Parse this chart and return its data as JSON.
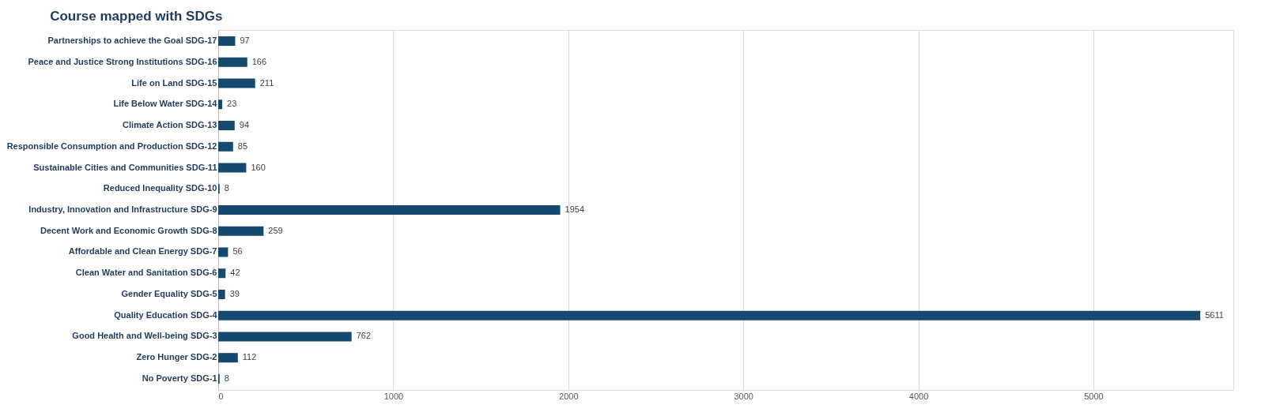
{
  "chart_data": {
    "type": "bar",
    "orientation": "horizontal",
    "title": "Course mapped with SDGs",
    "categories": [
      "Partnerships to achieve the Goal SDG-17",
      "Peace and Justice Strong Institutions SDG-16",
      "Life on Land SDG-15",
      "Life Below Water SDG-14",
      "Climate Action SDG-13",
      "Responsible Consumption and Production SDG-12",
      "Sustainable Cities and Communities SDG-11",
      "Reduced Inequality SDG-10",
      "Industry, Innovation and Infrastructure SDG-9",
      "Decent Work and Economic Growth SDG-8",
      "Affordable and Clean Energy SDG-7",
      "Clean Water and Sanitation SDG-6",
      "Gender Equality SDG-5",
      "Quality Education SDG-4",
      "Good Health and Well-being SDG-3",
      "Zero Hunger SDG-2",
      "No Poverty SDG-1"
    ],
    "values": [
      97,
      166,
      211,
      23,
      94,
      85,
      160,
      8,
      1954,
      259,
      56,
      42,
      39,
      5611,
      762,
      112,
      8
    ],
    "color": "#154a6e",
    "xlim": [
      0,
      5800
    ],
    "xticks": [
      0,
      1000,
      2000,
      3000,
      4000,
      5000
    ],
    "grid": "x",
    "data_labels": true
  }
}
